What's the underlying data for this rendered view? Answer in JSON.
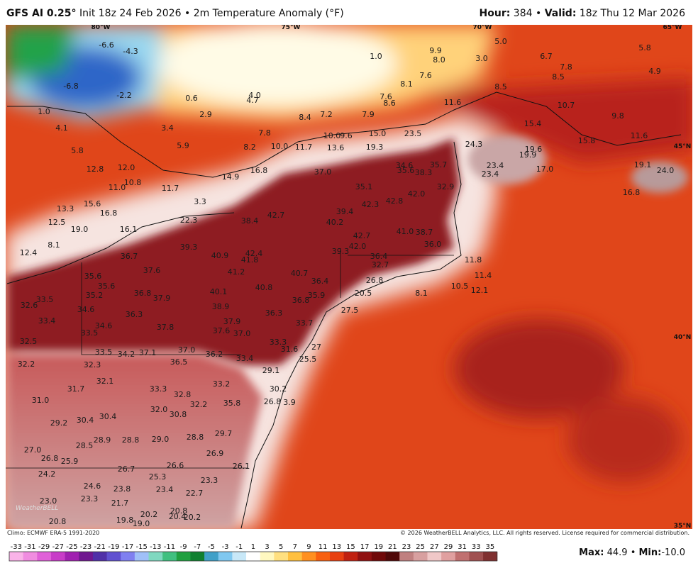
{
  "header": {
    "model": "GFS AI 0.25°",
    "init": "Init 18z 24 Feb 2026",
    "separator": "•",
    "field": "2m Temperature Anomaly (°F)",
    "hour_label": "Hour:",
    "hour": "384",
    "valid_label": "Valid:",
    "valid": "18z Thu 12 Mar 2026"
  },
  "map": {
    "grid_labels": [
      "80°W",
      "75°W",
      "70°W",
      "65°W",
      "45°N",
      "40°N",
      "35°N"
    ],
    "values": [
      "-6.6",
      "-4.3",
      "1.0",
      "9.9",
      "8.0",
      "3.0",
      "5.0",
      "5.8",
      "6.7",
      "7.8",
      "8.5",
      "4.9",
      "-6.8",
      "-2.2",
      "0.6",
      "4.0",
      "4.7",
      "7.6",
      "8.1",
      "8.5",
      "7.6",
      "8.6",
      "11.6",
      "10.7",
      "1.0",
      "2.9",
      "8.4",
      "7.2",
      "7.9",
      "9.8",
      "4.1",
      "3.4",
      "7.8",
      "10.0",
      "9.6",
      "15.0",
      "23.5",
      "15.4",
      "11.6",
      "5.8",
      "5.9",
      "8.2",
      "10.0",
      "11.7",
      "13.6",
      "19.3",
      "24.3",
      "15.8",
      "19.9",
      "19.6",
      "12.8",
      "12.0",
      "14.9",
      "16.8",
      "37.0",
      "34.6",
      "35.6",
      "38.3",
      "35.7",
      "23.4",
      "23.4",
      "17.0",
      "19.1",
      "24.0",
      "11.0",
      "10.8",
      "11.7",
      "35.1",
      "32.9",
      "42.0",
      "16.8",
      "3.3",
      "13.3",
      "15.6",
      "16.8",
      "42.3",
      "42.8",
      "39.4",
      "42.7",
      "22.3",
      "38.4",
      "40.2",
      "12.5",
      "19.0",
      "16.1",
      "41.0",
      "38.7",
      "42.7",
      "42.0",
      "36.0",
      "39.3",
      "40.9",
      "42.4",
      "41.8",
      "39.3",
      "36.4",
      "32.7",
      "11.8",
      "12.4",
      "8.1",
      "36.7",
      "37.6",
      "41.2",
      "40.7",
      "35.6",
      "35.6",
      "36.4",
      "26.8",
      "11.4",
      "10.5",
      "12.1",
      "33.5",
      "35.2",
      "36.8",
      "37.9",
      "40.1",
      "40.8",
      "35.9",
      "36.8",
      "20.5",
      "8.1",
      "32.6",
      "34.6",
      "36.3",
      "38.9",
      "36.3",
      "27.5",
      "33.4",
      "34.6",
      "37.8",
      "37.9",
      "37.6",
      "37.0",
      "33.7",
      "33.5",
      "32.5",
      "33.3",
      "31.6",
      "27",
      "33.5",
      "34.2",
      "37.1",
      "37.0",
      "36.2",
      "33.4",
      "25.5",
      "32.2",
      "32.3",
      "36.5",
      "29.1",
      "32.1",
      "33.2",
      "30.2",
      "31.7",
      "33.3",
      "32.8",
      "31.0",
      "32.2",
      "35.8",
      "26.8",
      "3.9",
      "32.0",
      "30.8",
      "29.2",
      "30.4",
      "30.4",
      "29.7",
      "28.9",
      "28.8",
      "29.0",
      "28.8",
      "28.5",
      "27.0",
      "26.9",
      "26.8",
      "25.9",
      "26.7",
      "26.6",
      "26.1",
      "24.2",
      "25.3",
      "23.3",
      "24.6",
      "23.8",
      "23.4",
      "22.7",
      "23.0",
      "23.3",
      "21.7",
      "20.2",
      "20.8",
      "20.4",
      "20.2",
      "19.8",
      "19.0",
      "20.8"
    ]
  },
  "footer": {
    "climo": "Climo: ECMWF ERA-5 1991-2020",
    "copyright": "© 2026 WeatherBELL Analytics, LLC. All rights reserved. License required for commercial distribution.",
    "logo": "WeatherBELL"
  },
  "colorbar": {
    "labels": [
      -33,
      -31,
      -29,
      -27,
      -25,
      -23,
      -21,
      -19,
      -17,
      -15,
      -13,
      -11,
      -9,
      -7,
      -5,
      -3,
      -1,
      1,
      3,
      5,
      7,
      9,
      11,
      13,
      15,
      17,
      19,
      21,
      23,
      25,
      27,
      29,
      31,
      33,
      35
    ]
  },
  "stats": {
    "max_label": "Max:",
    "max": "44.9",
    "separator": "•",
    "min_label": "Min:",
    "min": "-10.0"
  }
}
